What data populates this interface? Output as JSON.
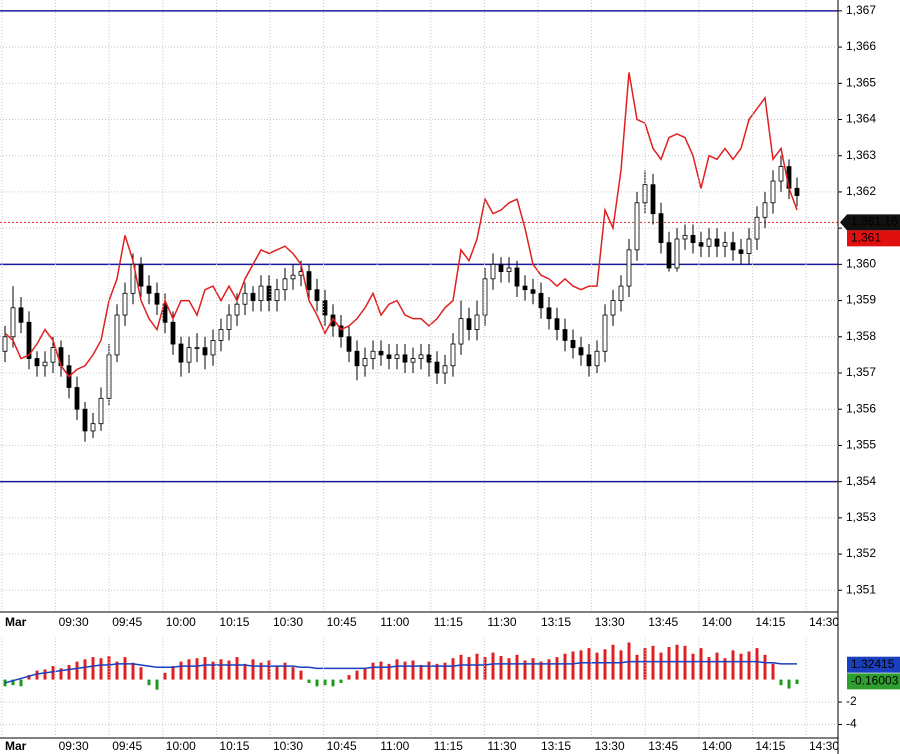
{
  "chart_data": [
    {
      "type": "candlestick",
      "x_labels": [
        "Mar",
        "09:30",
        "09:45",
        "10:00",
        "10:15",
        "10:30",
        "10:45",
        "11:00",
        "11:15",
        "11:30",
        "13:15",
        "13:30",
        "13:45",
        "14:00",
        "14:15",
        "14:30"
      ],
      "open": [
        1.3576,
        1.358,
        1.3588,
        1.3584,
        1.3574,
        1.3572,
        1.3573,
        1.3577,
        1.3572,
        1.3566,
        1.356,
        1.3554,
        1.3556,
        1.3563,
        1.3575,
        1.3586,
        1.3592,
        1.36,
        1.3594,
        1.3592,
        1.3589,
        1.3584,
        1.3578,
        1.3573,
        1.3577,
        1.3577,
        1.3575,
        1.3579,
        1.3582,
        1.3586,
        1.3589,
        1.3592,
        1.359,
        1.3594,
        1.359,
        1.3593,
        1.3596,
        1.3597,
        1.3598,
        1.3593,
        1.359,
        1.3586,
        1.3583,
        1.358,
        1.3576,
        1.3572,
        1.3574,
        1.3576,
        1.3575,
        1.3574,
        1.3575,
        1.3573,
        1.3574,
        1.3575,
        1.3573,
        1.357,
        1.3572,
        1.3578,
        1.3585,
        1.3582,
        1.3586,
        1.3596,
        1.36,
        1.3598,
        1.3599,
        1.3594,
        1.3593,
        1.3592,
        1.3588,
        1.3585,
        1.3582,
        1.3579,
        1.3577,
        1.3575,
        1.3572,
        1.3576,
        1.3586,
        1.359,
        1.3594,
        1.3604,
        1.3617,
        1.3622,
        1.3614,
        1.3606,
        1.3599,
        1.3607,
        1.3608,
        1.3606,
        1.3605,
        1.3607,
        1.3605,
        1.3606,
        1.3604,
        1.3603,
        1.3607,
        1.3613,
        1.3617,
        1.3623,
        1.3627,
        1.3621
      ],
      "high": [
        1.3583,
        1.3594,
        1.3591,
        1.3587,
        1.3576,
        1.3576,
        1.358,
        1.3579,
        1.3575,
        1.3569,
        1.3562,
        1.3559,
        1.3566,
        1.3578,
        1.3589,
        1.3595,
        1.3603,
        1.3602,
        1.3597,
        1.3595,
        1.3592,
        1.3587,
        1.358,
        1.358,
        1.3581,
        1.358,
        1.3582,
        1.3585,
        1.3589,
        1.3592,
        1.3595,
        1.3594,
        1.3597,
        1.3597,
        1.3596,
        1.3599,
        1.36,
        1.3601,
        1.36,
        1.3596,
        1.3593,
        1.3589,
        1.3586,
        1.3583,
        1.3579,
        1.3577,
        1.3579,
        1.3579,
        1.3578,
        1.3578,
        1.3578,
        1.3577,
        1.3578,
        1.3578,
        1.3576,
        1.3575,
        1.3581,
        1.359,
        1.3588,
        1.359,
        1.3599,
        1.3603,
        1.3602,
        1.3602,
        1.3601,
        1.3597,
        1.3596,
        1.3595,
        1.3591,
        1.3588,
        1.3585,
        1.3582,
        1.358,
        1.3578,
        1.3579,
        1.3589,
        1.3593,
        1.3597,
        1.3607,
        1.362,
        1.3626,
        1.3625,
        1.3617,
        1.3609,
        1.361,
        1.3611,
        1.3611,
        1.3609,
        1.361,
        1.361,
        1.3609,
        1.3609,
        1.3607,
        1.361,
        1.3616,
        1.362,
        1.3626,
        1.363,
        1.3629,
        1.3624
      ],
      "low": [
        1.3573,
        1.3577,
        1.3581,
        1.3571,
        1.3569,
        1.3569,
        1.357,
        1.3569,
        1.3563,
        1.3557,
        1.3551,
        1.3552,
        1.3554,
        1.3561,
        1.3573,
        1.3583,
        1.3589,
        1.3591,
        1.3589,
        1.3586,
        1.3581,
        1.3575,
        1.3569,
        1.357,
        1.3573,
        1.3571,
        1.3572,
        1.3576,
        1.3579,
        1.3583,
        1.3586,
        1.3587,
        1.3587,
        1.3587,
        1.3587,
        1.359,
        1.3593,
        1.3594,
        1.359,
        1.3587,
        1.3583,
        1.358,
        1.3577,
        1.3573,
        1.3568,
        1.3569,
        1.3571,
        1.3572,
        1.3571,
        1.3571,
        1.357,
        1.357,
        1.3571,
        1.3569,
        1.3567,
        1.3567,
        1.3569,
        1.3575,
        1.3579,
        1.3579,
        1.3583,
        1.3593,
        1.3595,
        1.3595,
        1.3591,
        1.359,
        1.3589,
        1.3585,
        1.3582,
        1.3579,
        1.3576,
        1.3574,
        1.3572,
        1.3569,
        1.357,
        1.3573,
        1.3583,
        1.3587,
        1.3591,
        1.3601,
        1.3614,
        1.3611,
        1.3603,
        1.3598,
        1.3598,
        1.3604,
        1.3603,
        1.3602,
        1.3602,
        1.3602,
        1.3602,
        1.3601,
        1.36,
        1.36,
        1.3604,
        1.361,
        1.3614,
        1.362,
        1.3618,
        1.3616
      ],
      "close": [
        1.358,
        1.3588,
        1.3584,
        1.3574,
        1.3572,
        1.3573,
        1.3577,
        1.3572,
        1.3566,
        1.356,
        1.3554,
        1.3556,
        1.3563,
        1.3575,
        1.3586,
        1.3592,
        1.36,
        1.3594,
        1.3592,
        1.3589,
        1.3584,
        1.3578,
        1.3573,
        1.3577,
        1.3577,
        1.3575,
        1.3579,
        1.3582,
        1.3586,
        1.3589,
        1.3592,
        1.359,
        1.3594,
        1.359,
        1.3593,
        1.3596,
        1.3597,
        1.3598,
        1.3593,
        1.359,
        1.3586,
        1.3583,
        1.358,
        1.3576,
        1.3572,
        1.3574,
        1.3576,
        1.3575,
        1.3574,
        1.3575,
        1.3573,
        1.3574,
        1.3575,
        1.3573,
        1.357,
        1.3572,
        1.3578,
        1.3585,
        1.3582,
        1.3586,
        1.3596,
        1.36,
        1.3598,
        1.3599,
        1.3594,
        1.3593,
        1.3592,
        1.3588,
        1.3585,
        1.3582,
        1.3579,
        1.3577,
        1.3575,
        1.3572,
        1.3576,
        1.3586,
        1.359,
        1.3594,
        1.3604,
        1.3617,
        1.3622,
        1.3614,
        1.3606,
        1.3599,
        1.3607,
        1.3608,
        1.3606,
        1.3605,
        1.3607,
        1.3605,
        1.3606,
        1.3604,
        1.3603,
        1.3607,
        1.3613,
        1.3617,
        1.3623,
        1.3627,
        1.3621,
        1.3619
      ],
      "up_color": "#ffffff",
      "down_color": "#000000",
      "overlay": {
        "color": "#e02020",
        "values": [
          1.3581,
          1.3579,
          1.3574,
          1.3575,
          1.3578,
          1.3582,
          1.3579,
          1.3572,
          1.3569,
          1.3571,
          1.3572,
          1.3575,
          1.3579,
          1.359,
          1.3596,
          1.3608,
          1.3601,
          1.359,
          1.3585,
          1.3582,
          1.359,
          1.3585,
          1.359,
          1.359,
          1.3586,
          1.3593,
          1.3594,
          1.359,
          1.3594,
          1.359,
          1.3596,
          1.36,
          1.3604,
          1.3603,
          1.3604,
          1.3605,
          1.3603,
          1.36,
          1.359,
          1.3586,
          1.3581,
          1.3585,
          1.3582,
          1.3583,
          1.3585,
          1.3588,
          1.3592,
          1.3586,
          1.3589,
          1.359,
          1.3586,
          1.3585,
          1.3585,
          1.3583,
          1.3585,
          1.3588,
          1.359,
          1.3604,
          1.3601,
          1.3607,
          1.3618,
          1.3614,
          1.3615,
          1.3617,
          1.3618,
          1.361,
          1.36,
          1.3597,
          1.3596,
          1.3594,
          1.3596,
          1.3594,
          1.3593,
          1.3594,
          1.3594,
          1.3615,
          1.361,
          1.3626,
          1.3653,
          1.364,
          1.3639,
          1.3632,
          1.3629,
          1.3635,
          1.3636,
          1.3635,
          1.363,
          1.3621,
          1.363,
          1.3629,
          1.3632,
          1.3629,
          1.3632,
          1.364,
          1.3643,
          1.3646,
          1.3629,
          1.3632,
          1.3621,
          1.3615
        ]
      },
      "levels": {
        "color": "#1a1aa0",
        "values": [
          1.367,
          1.36,
          1.354
        ]
      },
      "last_price_line": {
        "value": 1.36116,
        "color": "#e02020"
      },
      "price_labels": [
        {
          "value": 1.36116,
          "label": "1,361.16",
          "color": "#111111"
        },
        {
          "value": 1.361,
          "label": "1,361",
          "color": "#e01010"
        }
      ],
      "ylim": [
        1.3504,
        1.3673
      ],
      "yticks": [
        {
          "value": 1.351,
          "label": "1,351"
        },
        {
          "value": 1.352,
          "label": "1,352"
        },
        {
          "value": 1.353,
          "label": "1,353"
        },
        {
          "value": 1.354,
          "label": "1,354"
        },
        {
          "value": 1.355,
          "label": "1,355"
        },
        {
          "value": 1.356,
          "label": "1,356"
        },
        {
          "value": 1.357,
          "label": "1,357"
        },
        {
          "value": 1.358,
          "label": "1,358"
        },
        {
          "value": 1.359,
          "label": "1,359"
        },
        {
          "value": 1.36,
          "label": "1,360"
        },
        {
          "value": 1.361,
          "label": "1,361"
        },
        {
          "value": 1.362,
          "label": "1,362"
        },
        {
          "value": 1.363,
          "label": "1,363"
        },
        {
          "value": 1.364,
          "label": "1,364"
        },
        {
          "value": 1.365,
          "label": "1,365"
        },
        {
          "value": 1.366,
          "label": "1,366"
        },
        {
          "value": 1.367,
          "label": "1,367"
        }
      ],
      "grid": true
    },
    {
      "type": "bar",
      "values": [
        -0.6,
        -0.5,
        -0.6,
        0.4,
        0.8,
        0.9,
        1.2,
        1.0,
        1.3,
        1.6,
        1.8,
        2.0,
        1.9,
        2.1,
        1.6,
        2.0,
        1.5,
        1.1,
        -0.5,
        -0.9,
        0.6,
        1.2,
        1.6,
        1.8,
        1.9,
        2.0,
        1.6,
        1.8,
        1.7,
        2.0,
        1.4,
        1.8,
        1.5,
        1.7,
        1.2,
        1.5,
        1.1,
        0.8,
        -0.3,
        -0.6,
        -0.5,
        -0.6,
        -0.3,
        0.4,
        0.8,
        1.0,
        1.5,
        1.6,
        1.4,
        1.8,
        1.6,
        1.7,
        1.3,
        1.6,
        1.4,
        1.5,
        1.9,
        2.2,
        2.0,
        2.3,
        2.0,
        2.4,
        2.1,
        1.9,
        2.2,
        1.7,
        1.9,
        1.6,
        1.8,
        2.0,
        2.3,
        2.5,
        2.6,
        2.8,
        2.4,
        2.7,
        3.1,
        2.6,
        3.3,
        2.2,
        2.8,
        3.0,
        2.4,
        2.9,
        3.1,
        3.0,
        2.3,
        2.8,
        2.0,
        2.4,
        1.9,
        2.6,
        2.3,
        2.5,
        2.8,
        2.2,
        1.4,
        -0.5,
        -0.8,
        -0.4
      ],
      "positive_color": "#e02020",
      "negative_color": "#1a9a1a",
      "signal": {
        "color": "#1a3fbf",
        "values": [
          -0.3,
          -0.1,
          0.1,
          0.3,
          0.5,
          0.6,
          0.7,
          0.8,
          0.9,
          1.0,
          1.1,
          1.2,
          1.3,
          1.3,
          1.4,
          1.4,
          1.4,
          1.3,
          1.2,
          1.1,
          1.1,
          1.1,
          1.2,
          1.2,
          1.2,
          1.3,
          1.3,
          1.3,
          1.3,
          1.3,
          1.3,
          1.2,
          1.2,
          1.2,
          1.2,
          1.2,
          1.2,
          1.1,
          1.1,
          1.0,
          1.0,
          1.0,
          1.0,
          1.0,
          1.0,
          1.0,
          1.1,
          1.1,
          1.1,
          1.2,
          1.2,
          1.2,
          1.2,
          1.2,
          1.2,
          1.2,
          1.2,
          1.3,
          1.3,
          1.3,
          1.3,
          1.4,
          1.4,
          1.4,
          1.4,
          1.4,
          1.4,
          1.4,
          1.4,
          1.4,
          1.4,
          1.4,
          1.5,
          1.5,
          1.5,
          1.5,
          1.5,
          1.5,
          1.6,
          1.6,
          1.6,
          1.6,
          1.6,
          1.6,
          1.6,
          1.6,
          1.6,
          1.6,
          1.6,
          1.6,
          1.6,
          1.6,
          1.6,
          1.6,
          1.6,
          1.5,
          1.5,
          1.4,
          1.4,
          1.4
        ]
      },
      "price_labels": [
        {
          "value": 1.32415,
          "label": "1.32415",
          "color": "#1a3fbf"
        },
        {
          "value": -0.16003,
          "label": "-0.16003",
          "color": "#2e9e2e"
        }
      ],
      "ylim": [
        -5.2,
        3.7
      ],
      "yticks": [
        -2,
        -4
      ],
      "grid": true
    }
  ]
}
